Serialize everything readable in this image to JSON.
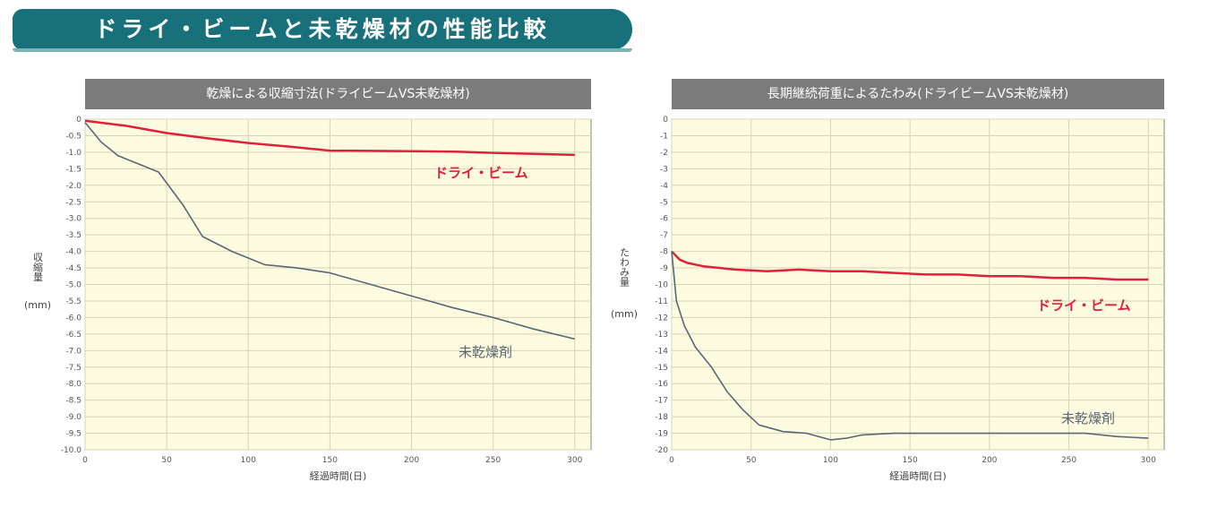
{
  "banner": {
    "title": "ドライ・ビームと未乾燥材の性能比較",
    "bg_color": "#17707a"
  },
  "chart_data": [
    {
      "type": "line",
      "title": "乾燥による収縮寸法(ドライビームVS未乾燥材)",
      "xlabel": "経過時間(日)",
      "ylabel": "収縮量",
      "yunit": "(mm)",
      "xlim": [
        0,
        310
      ],
      "ylim": [
        -10.0,
        0
      ],
      "xticks": [
        0,
        50,
        100,
        150,
        200,
        250,
        300
      ],
      "yticks": [
        0,
        -0.5,
        -1.0,
        -1.5,
        -2.0,
        -2.5,
        -3.0,
        -3.5,
        -4.0,
        -4.5,
        -5.0,
        -5.5,
        -6.0,
        -6.5,
        -7.0,
        -7.5,
        -8.0,
        -8.5,
        -9.0,
        -9.5,
        -10.0
      ],
      "ytick_labels": [
        "0",
        "-0.5",
        "-1.0",
        "-1.5",
        "-2.0",
        "-2.5",
        "-3.0",
        "-3.5",
        "-4.0",
        "-4.5",
        "-5.0",
        "-5.5",
        "-6.0",
        "-6.5",
        "-7.0",
        "-7.5",
        "-8.0",
        "-8.5",
        "-9.0",
        "-9.5",
        "-10.0"
      ],
      "grid": true,
      "plot_bg": "#fdfbe0",
      "series": [
        {
          "name": "ドライ・ビーム",
          "color": "#e0203c",
          "x": [
            0,
            25,
            50,
            75,
            100,
            125,
            150,
            175,
            200,
            225,
            250,
            275,
            300
          ],
          "y": [
            -0.05,
            -0.2,
            -0.42,
            -0.58,
            -0.72,
            -0.83,
            -0.95,
            -0.96,
            -0.97,
            -0.98,
            -1.02,
            -1.05,
            -1.08
          ]
        },
        {
          "name": "未乾燥剤",
          "color": "#5a6775",
          "x": [
            0,
            10,
            20,
            30,
            45,
            60,
            72,
            90,
            110,
            130,
            150,
            175,
            200,
            225,
            250,
            275,
            300
          ],
          "y": [
            -0.1,
            -0.7,
            -1.1,
            -1.3,
            -1.6,
            -2.6,
            -3.55,
            -4.0,
            -4.4,
            -4.5,
            -4.65,
            -5.0,
            -5.35,
            -5.7,
            -6.0,
            -6.35,
            -6.65
          ]
        }
      ]
    },
    {
      "type": "line",
      "title": "長期継続荷重によるたわみ(ドライビームVS未乾燥材)",
      "xlabel": "経過時間(日)",
      "ylabel": "たわみ量",
      "yunit": "(mm)",
      "xlim": [
        0,
        310
      ],
      "ylim": [
        -20,
        0
      ],
      "xticks": [
        0,
        50,
        100,
        150,
        200,
        250,
        300
      ],
      "yticks": [
        0,
        -1,
        -2,
        -3,
        -4,
        -5,
        -6,
        -7,
        -8,
        -9,
        -10,
        -11,
        -12,
        -13,
        -14,
        -15,
        -16,
        -17,
        -18,
        -19,
        -20
      ],
      "ytick_labels": [
        "0",
        "-1",
        "-2",
        "-3",
        "-4",
        "-5",
        "-6",
        "-7",
        "-8",
        "-9",
        "-10",
        "-11",
        "-12",
        "-13",
        "-14",
        "-15",
        "-16",
        "-17",
        "-18",
        "-19",
        "-20"
      ],
      "grid": true,
      "plot_bg": "#fdfbe0",
      "series": [
        {
          "name": "ドライ・ビーム",
          "color": "#e0203c",
          "x": [
            0,
            5,
            10,
            20,
            40,
            60,
            80,
            100,
            120,
            140,
            160,
            180,
            200,
            220,
            240,
            260,
            280,
            300
          ],
          "y": [
            -8.0,
            -8.5,
            -8.7,
            -8.9,
            -9.1,
            -9.2,
            -9.1,
            -9.2,
            -9.2,
            -9.3,
            -9.4,
            -9.4,
            -9.5,
            -9.5,
            -9.6,
            -9.6,
            -9.7,
            -9.7
          ]
        },
        {
          "name": "未乾燥剤",
          "color": "#5a6775",
          "x": [
            0,
            3,
            8,
            15,
            25,
            35,
            45,
            55,
            70,
            85,
            100,
            110,
            120,
            140,
            160,
            180,
            200,
            220,
            240,
            260,
            280,
            300
          ],
          "y": [
            -8.0,
            -11.0,
            -12.5,
            -13.8,
            -15.0,
            -16.5,
            -17.6,
            -18.5,
            -18.9,
            -19.0,
            -19.4,
            -19.3,
            -19.1,
            -19.0,
            -19.0,
            -19.0,
            -19.0,
            -19.0,
            -19.0,
            -19.0,
            -19.2,
            -19.3
          ]
        }
      ]
    }
  ]
}
